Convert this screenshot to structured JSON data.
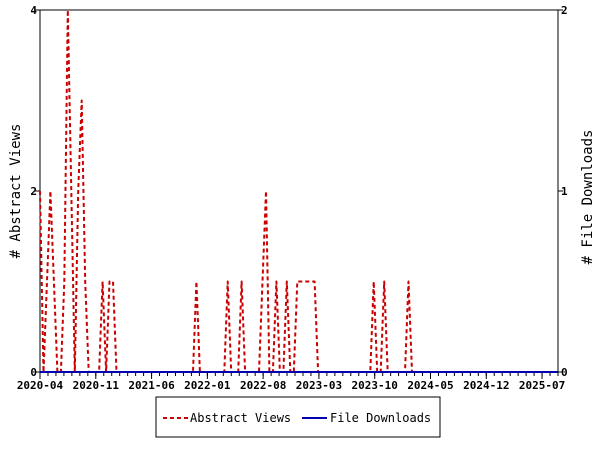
{
  "chart_data": {
    "type": "line",
    "ylabel_left": "# Abstract Views",
    "ylabel_right": "# File Downloads",
    "ylim_left": [
      0,
      4
    ],
    "ylim_right": [
      0,
      2
    ],
    "yticks_left": [
      "0",
      "2",
      "4"
    ],
    "yticks_right": [
      "0",
      "1",
      "2"
    ],
    "xtick_labels": [
      "2020-04",
      "2020-11",
      "2021-06",
      "2022-01",
      "2022-08",
      "2023-03",
      "2023-10",
      "2024-05",
      "2024-12",
      "2025-07"
    ],
    "x_start": "2020-04",
    "x_end": "2025-09",
    "grid": false,
    "legend_position": "bottom",
    "series": [
      {
        "name": "Abstract Views",
        "axis": "left",
        "color": "#cc0000",
        "dash": true,
        "values": [
          2,
          0,
          1,
          2,
          1,
          0,
          0,
          1,
          4,
          2,
          0,
          2,
          3,
          1,
          0,
          0,
          0,
          0,
          1,
          0,
          1,
          1,
          0,
          0,
          0,
          0,
          0,
          0,
          0,
          0,
          0,
          0,
          0,
          0,
          0,
          0,
          0,
          0,
          0,
          0,
          0,
          0,
          0,
          0,
          0,
          1,
          0,
          0,
          0,
          0,
          0,
          0,
          0,
          0,
          1,
          0,
          0,
          0,
          1,
          0,
          0,
          0,
          0,
          0,
          1,
          2,
          0,
          0,
          1,
          0,
          0,
          1,
          0,
          0,
          1,
          1,
          1,
          1,
          1,
          1,
          0,
          0,
          0,
          0,
          0,
          0,
          0,
          0,
          0,
          0,
          0,
          0,
          0,
          0,
          0,
          0,
          1,
          0,
          0,
          1,
          0,
          0,
          0,
          0,
          0,
          0,
          1,
          0,
          0,
          0,
          0,
          0,
          0,
          0,
          0,
          0,
          0,
          0,
          0,
          0,
          0,
          0,
          0,
          0,
          0,
          0,
          0,
          0,
          0,
          0,
          0,
          0,
          0,
          0,
          0,
          0,
          0,
          0,
          0,
          0,
          0,
          0,
          0,
          0,
          0,
          0,
          0,
          0,
          0,
          0
        ]
      },
      {
        "name": "File Downloads",
        "axis": "right",
        "color": "#0000b0",
        "dash": false,
        "values": [
          0,
          0,
          0,
          0,
          0,
          0,
          0,
          0,
          0,
          0,
          0,
          0,
          0,
          0,
          0,
          0,
          0,
          0,
          0,
          0,
          0,
          0,
          0,
          0,
          0,
          0,
          0,
          0,
          0,
          0,
          0,
          0,
          0,
          0,
          0,
          0,
          0,
          0,
          0,
          0,
          0,
          0,
          0,
          0,
          0,
          0,
          0,
          0,
          0,
          0,
          0,
          0,
          0,
          0,
          0,
          0,
          0,
          0,
          0,
          0,
          0,
          0,
          0,
          0,
          0,
          0,
          0,
          0,
          0,
          0,
          0,
          0,
          0,
          0,
          0,
          0,
          0,
          0,
          0,
          0,
          0,
          0,
          0,
          0,
          0,
          0,
          0,
          0,
          0,
          0,
          0,
          0,
          0,
          0,
          0,
          0,
          0,
          0,
          0,
          0,
          0,
          0,
          0,
          0,
          0,
          0,
          0,
          0,
          0,
          0,
          0,
          0,
          0,
          0,
          0,
          0,
          0,
          0,
          0,
          0,
          0,
          0,
          0,
          0,
          0,
          0,
          0,
          0,
          0,
          0,
          0,
          0,
          0,
          0,
          0,
          0,
          0,
          0,
          0,
          0,
          0,
          0,
          0,
          0,
          0,
          0,
          0,
          0,
          0,
          0
        ]
      }
    ]
  }
}
